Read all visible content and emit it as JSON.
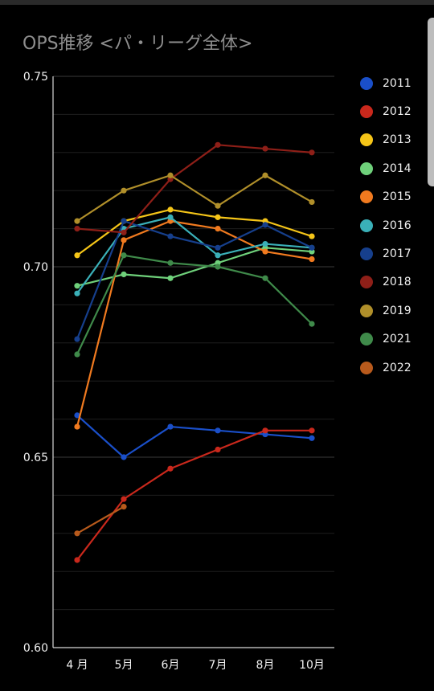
{
  "chart_data": {
    "type": "line",
    "title": "OPS推移 <パ・リーグ全体>",
    "categories": [
      "4 月",
      "5月",
      "6月",
      "7月",
      "8月",
      "10月"
    ],
    "ylim": [
      0.6,
      0.75
    ],
    "y_ticks": [
      "0.60",
      "0.65",
      "0.70",
      "0.75"
    ],
    "grid": true,
    "legend_position": "right",
    "series": [
      {
        "name": "2011",
        "color": "#1a4fc9",
        "values": [
          0.661,
          0.65,
          0.658,
          0.657,
          0.656,
          0.655
        ]
      },
      {
        "name": "2012",
        "color": "#c9281c",
        "values": [
          0.623,
          0.639,
          0.647,
          0.652,
          0.657,
          0.657
        ]
      },
      {
        "name": "2013",
        "color": "#f5c518",
        "values": [
          0.703,
          0.712,
          0.715,
          0.713,
          0.712,
          0.708
        ]
      },
      {
        "name": "2014",
        "color": "#6fd17b",
        "values": [
          0.695,
          0.698,
          0.697,
          0.701,
          0.705,
          0.704
        ]
      },
      {
        "name": "2015",
        "color": "#f07a1f",
        "values": [
          0.658,
          0.707,
          0.712,
          0.71,
          0.704,
          0.702
        ]
      },
      {
        "name": "2016",
        "color": "#3ab0b8",
        "values": [
          0.693,
          0.71,
          0.713,
          0.703,
          0.706,
          0.705
        ]
      },
      {
        "name": "2017",
        "color": "#163f8c",
        "values": [
          0.681,
          0.712,
          0.708,
          0.705,
          0.711,
          0.705
        ]
      },
      {
        "name": "2018",
        "color": "#8e1f18",
        "values": [
          0.71,
          0.709,
          0.723,
          0.732,
          0.731,
          0.73
        ]
      },
      {
        "name": "2019",
        "color": "#b08f2a",
        "values": [
          0.712,
          0.72,
          0.724,
          0.716,
          0.724,
          0.717
        ]
      },
      {
        "name": "2021",
        "color": "#3f8a4a",
        "values": [
          0.677,
          0.703,
          0.701,
          0.7,
          0.697,
          0.685
        ]
      },
      {
        "name": "2022",
        "color": "#b85a1c",
        "values": [
          0.63,
          0.637,
          null,
          null,
          null,
          null
        ]
      }
    ]
  }
}
